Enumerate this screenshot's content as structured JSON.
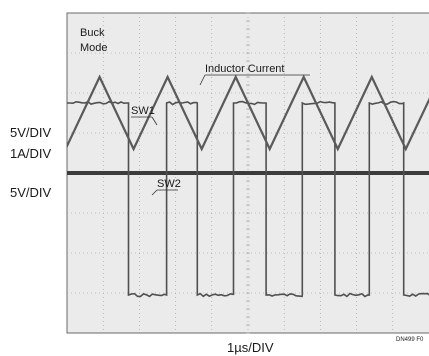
{
  "chart_data": {
    "type": "line",
    "title": "",
    "mode_label_line1": "Buck",
    "mode_label_line2": "Mode",
    "xlabel": "1µs/DIV",
    "figure_id": "DN499 F0",
    "grid": true,
    "divisions": {
      "x": 10,
      "y": 8
    },
    "left_labels": [
      "5V/DIV",
      "1A/DIV",
      "5V/DIV"
    ],
    "annotations": [
      "Inductor Current",
      "SW1",
      "SW2"
    ],
    "time_unit": "µs",
    "series": [
      {
        "name": "Inductor Current",
        "shape": "triangle",
        "period_div": 1.88,
        "first_peak_div": 0.9,
        "peak_div_from_top": 1.6,
        "valley_div_from_top": 3.4,
        "color": "#5a5a5a"
      },
      {
        "name": "SW1",
        "shape": "square",
        "high_div_from_top": 2.25,
        "low_div_from_top": 7.05,
        "edges_div": [
          0.0,
          1.7,
          2.75,
          3.6,
          4.6,
          5.5,
          6.5,
          7.4,
          8.35,
          9.3
        ],
        "color": "#505050"
      },
      {
        "name": "SW2",
        "shape": "flat",
        "level_div_from_top": 4.0,
        "color": "#3c3c3c"
      }
    ],
    "colors": {
      "background": "#ebebeb",
      "grid": "#9a9a9a",
      "frame": "#6a6a6a"
    }
  }
}
